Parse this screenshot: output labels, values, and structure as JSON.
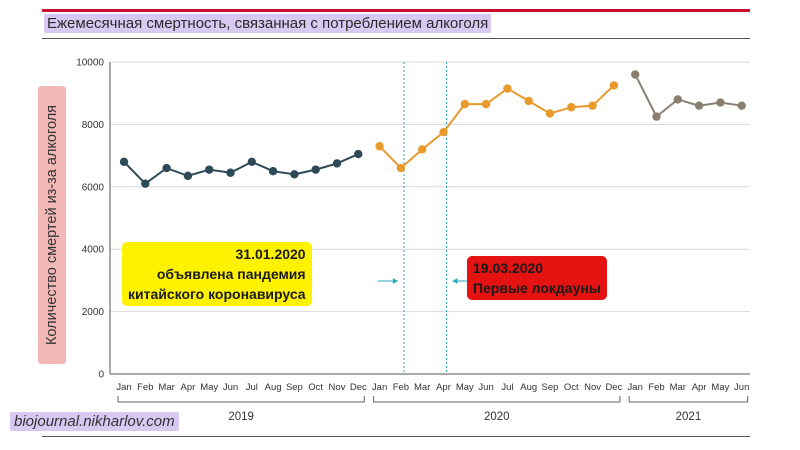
{
  "chart_data": {
    "type": "line",
    "title": "Ежемесячная смертность, связанная с потреблением алкоголя",
    "ylabel": "Количество смертей из-за алкоголя",
    "xlabel": "",
    "ylim": [
      0,
      10000
    ],
    "yticks": [
      "0",
      "2000",
      "4000",
      "6000",
      "8000",
      "10000"
    ],
    "grid": true,
    "months": [
      "Jan",
      "Feb",
      "Mar",
      "Apr",
      "May",
      "Jun",
      "Jul",
      "Aug",
      "Sep",
      "Oct",
      "Nov",
      "Dec",
      "Jan",
      "Feb",
      "Mar",
      "Apr",
      "May",
      "Jun",
      "Jul",
      "Aug",
      "Sep",
      "Oct",
      "Nov",
      "Dec",
      "Jan",
      "Feb",
      "Mar",
      "Apr",
      "May",
      "Jun"
    ],
    "series": [
      {
        "year": "2019",
        "color": "#2e4a57",
        "values": [
          6800,
          6100,
          6600,
          6350,
          6550,
          6450,
          6800,
          6500,
          6400,
          6550,
          6750,
          7050
        ]
      },
      {
        "year": "2020",
        "color": "#e89a2c",
        "values": [
          7300,
          6600,
          7200,
          7750,
          8650,
          8650,
          9150,
          8750,
          8350,
          8550,
          8600,
          9250
        ]
      },
      {
        "year": "2021",
        "color": "#8a7e70",
        "values": [
          9600,
          8250,
          8800,
          8600,
          8700,
          8600
        ]
      }
    ],
    "events": [
      {
        "month_index": 13,
        "text": [
          "31.01.2020",
          "объявлена пандемия",
          "китайского коронавируса"
        ]
      },
      {
        "month_index": 15,
        "text": [
          "19.03.2020",
          "Первые локдауны"
        ]
      }
    ]
  },
  "watermark": "biojournal.nikharlov.com",
  "colors": {
    "accent_rule": "#c8102e",
    "event_line": "#2aa7c0"
  }
}
